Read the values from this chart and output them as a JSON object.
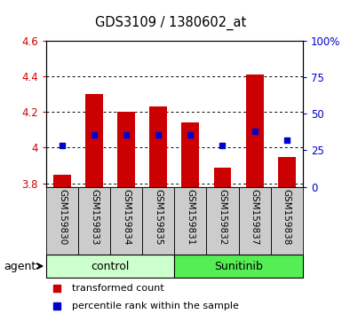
{
  "title": "GDS3109 / 1380602_at",
  "samples": [
    "GSM159830",
    "GSM159833",
    "GSM159834",
    "GSM159835",
    "GSM159831",
    "GSM159832",
    "GSM159837",
    "GSM159838"
  ],
  "bar_values": [
    3.85,
    4.3,
    4.2,
    4.23,
    4.14,
    3.89,
    4.41,
    3.95
  ],
  "percentile_values": [
    4.01,
    4.07,
    4.07,
    4.07,
    4.07,
    4.01,
    4.09,
    4.04
  ],
  "bar_color": "#cc0000",
  "percentile_color": "#0000cc",
  "ylim_left": [
    3.78,
    4.6
  ],
  "ylim_right": [
    0,
    100
  ],
  "yticks_left": [
    3.8,
    4.0,
    4.2,
    4.4,
    4.6
  ],
  "yticks_left_labels": [
    "3.8",
    "4",
    "4.2",
    "4.4",
    "4.6"
  ],
  "yticks_right": [
    0,
    25,
    50,
    75,
    100
  ],
  "yticks_right_labels": [
    "0",
    "25",
    "50",
    "75",
    "100%"
  ],
  "groups": [
    {
      "label": "control",
      "indices": [
        0,
        1,
        2,
        3
      ],
      "color": "#ccffcc"
    },
    {
      "label": "Sunitinib",
      "indices": [
        4,
        5,
        6,
        7
      ],
      "color": "#55ee55"
    }
  ],
  "agent_label": "agent",
  "bar_width": 0.55,
  "bg_color_plot": "#ffffff",
  "bg_color_label_row": "#cccccc",
  "grid_color": "#000000"
}
